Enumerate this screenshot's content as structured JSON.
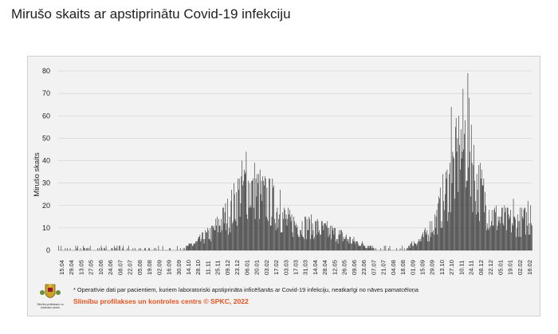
{
  "page": {
    "title": "Mirušo skaits ar apstiprinātu Covid-19 infekciju",
    "footnote": "* Operatīvie dati par pacientiem, kuriem laboratoriski apstiprināta inficēšanās ar Covid-19 infekciju, neatkarīgi no nāves pamatcēloņa",
    "credit": "Slimību profilakses un kontroles centrs © SPKC, 2022",
    "logo_caption": "Slimību profilakses un kontroles centrs"
  },
  "colors": {
    "bar": "#2b2b2b",
    "grid": "#c8c8c8",
    "panel": "#f2f2f2",
    "credit": "#e8531f"
  },
  "chart_data": {
    "type": "bar",
    "ylabel": "Mirušo skaits",
    "xlabel": "",
    "ylim": [
      0,
      80
    ],
    "yticks": [
      0,
      10,
      20,
      30,
      40,
      50,
      60,
      70,
      80
    ],
    "grid": true,
    "x_tick_labels": [
      "15.04",
      "29.04",
      "13.05",
      "27.05",
      "10.06",
      "24.06",
      "08.07",
      "22.07",
      "05.08",
      "19.08",
      "02.09",
      "16.09",
      "30.09",
      "14.10",
      "28.10",
      "11.11",
      "25.11",
      "09.12",
      "23.12",
      "06.01",
      "20.01",
      "03.02",
      "17.02",
      "03.03",
      "17.03",
      "31.03",
      "14.04",
      "28.04",
      "12.05",
      "26.05",
      "09.06",
      "23.06",
      "07.07",
      "21.07",
      "04.08",
      "18.08",
      "01.09",
      "15.09",
      "29.09",
      "13.10",
      "27.10",
      "10.11",
      "24.11",
      "08.12",
      "22.12",
      "05.01",
      "19.01",
      "02.02",
      "16.02"
    ],
    "period": {
      "start": "2020-04-01",
      "end": "2022-02-16",
      "unit": "day"
    },
    "series": [
      {
        "name": "",
        "shape": [
          {
            "date": "2020-04-01",
            "value": 1
          },
          {
            "date": "2020-05-20",
            "value": 1
          },
          {
            "date": "2020-06-15",
            "value": 0
          },
          {
            "date": "2020-09-20",
            "value": 0
          },
          {
            "date": "2020-10-15",
            "value": 3
          },
          {
            "date": "2020-11-10",
            "value": 8
          },
          {
            "date": "2020-12-05",
            "value": 17
          },
          {
            "date": "2020-12-25",
            "value": 28
          },
          {
            "date": "2021-01-10",
            "value": 27
          },
          {
            "date": "2021-02-05",
            "value": 20
          },
          {
            "date": "2021-03-01",
            "value": 12
          },
          {
            "date": "2021-04-10",
            "value": 10
          },
          {
            "date": "2021-05-10",
            "value": 7
          },
          {
            "date": "2021-06-10",
            "value": 3
          },
          {
            "date": "2021-07-10",
            "value": 1
          },
          {
            "date": "2021-08-15",
            "value": 1
          },
          {
            "date": "2021-09-10",
            "value": 5
          },
          {
            "date": "2021-10-01",
            "value": 14
          },
          {
            "date": "2021-10-25",
            "value": 35
          },
          {
            "date": "2021-11-12",
            "value": 50
          },
          {
            "date": "2021-11-28",
            "value": 30
          },
          {
            "date": "2021-12-20",
            "value": 15
          },
          {
            "date": "2022-01-20",
            "value": 12
          },
          {
            "date": "2022-02-16",
            "value": 14
          }
        ],
        "peaks": [
          {
            "date": "2020-12-29",
            "value": 44
          },
          {
            "date": "2021-01-08",
            "value": 32
          },
          {
            "date": "2021-01-20",
            "value": 31
          },
          {
            "date": "2021-02-05",
            "value": 32
          },
          {
            "date": "2021-02-16",
            "value": 27
          },
          {
            "date": "2021-10-22",
            "value": 64
          },
          {
            "date": "2021-11-03",
            "value": 47
          },
          {
            "date": "2021-11-10",
            "value": 52
          },
          {
            "date": "2021-11-15",
            "value": 79
          },
          {
            "date": "2021-11-20",
            "value": 56
          },
          {
            "date": "2022-01-20",
            "value": 23
          },
          {
            "date": "2022-02-10",
            "value": 22
          },
          {
            "date": "2022-02-14",
            "value": 20
          }
        ]
      }
    ]
  }
}
